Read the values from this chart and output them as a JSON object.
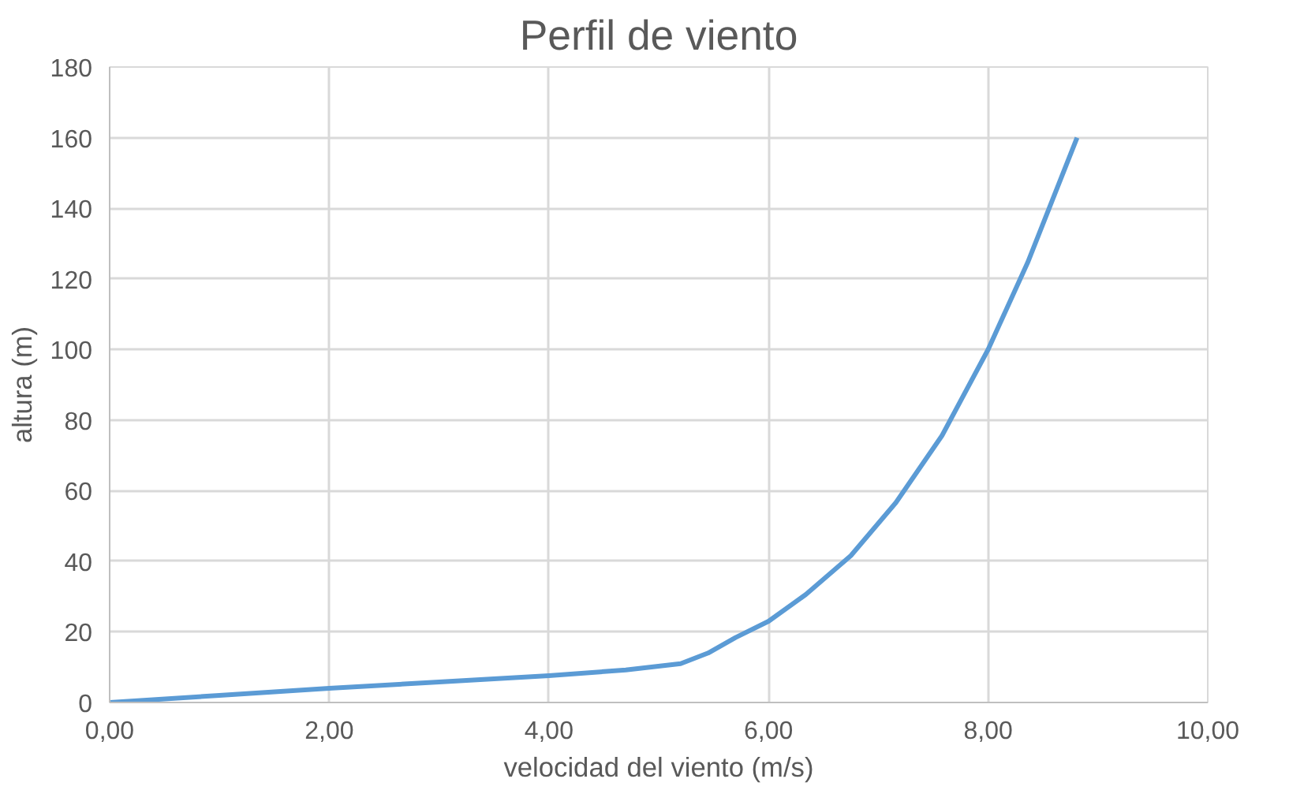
{
  "chart_data": {
    "type": "line",
    "title": "Perfil de viento",
    "xlabel": "velocidad del viento (m/s)",
    "ylabel": "altura (m)",
    "series": [
      {
        "color": "#5b9bd5",
        "x": [
          0,
          1,
          2,
          3,
          4,
          4.7,
          5.2,
          5.45,
          5.7,
          6.0,
          6.34,
          6.75,
          7.16,
          7.58,
          8.0,
          8.36,
          8.81
        ],
        "values": [
          0,
          2,
          4,
          5.8,
          7.6,
          9.2,
          11,
          14,
          18.4,
          23,
          30.6,
          41.6,
          56.6,
          75.6,
          100,
          124.6,
          160
        ]
      }
    ],
    "xlim": [
      0,
      10
    ],
    "ylim": [
      0,
      180
    ],
    "xticks": [
      {
        "value": 0,
        "label": "0,00"
      },
      {
        "value": 2,
        "label": "2,00"
      },
      {
        "value": 4,
        "label": "4,00"
      },
      {
        "value": 6,
        "label": "6,00"
      },
      {
        "value": 8,
        "label": "8,00"
      },
      {
        "value": 10,
        "label": "10,00"
      }
    ],
    "yticks": [
      0,
      20,
      40,
      60,
      80,
      100,
      120,
      140,
      160,
      180
    ],
    "grid": true,
    "marker": "none",
    "line_style": "solid"
  }
}
